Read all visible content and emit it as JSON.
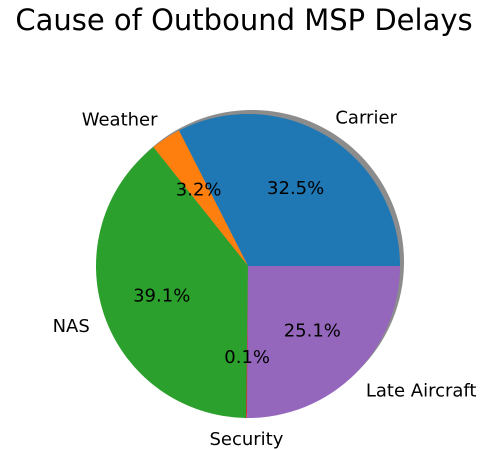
{
  "chart_data": {
    "type": "pie",
    "title": "Cause of Outbound MSP Delays",
    "start_angle_deg": 0,
    "direction": "counterclockwise",
    "shadow": true,
    "slices": [
      {
        "label": "Carrier",
        "value": 32.5,
        "pct_label": "32.5%",
        "color": "#1f77b4"
      },
      {
        "label": "Weather",
        "value": 3.2,
        "pct_label": "3.2%",
        "color": "#ff7f0e"
      },
      {
        "label": "NAS",
        "value": 39.1,
        "pct_label": "39.1%",
        "color": "#2ca02c"
      },
      {
        "label": "Security",
        "value": 0.1,
        "pct_label": "0.1%",
        "color": "#d62728"
      },
      {
        "label": "Late Aircraft",
        "value": 25.1,
        "pct_label": "25.1%",
        "color": "#9467bd"
      }
    ]
  }
}
